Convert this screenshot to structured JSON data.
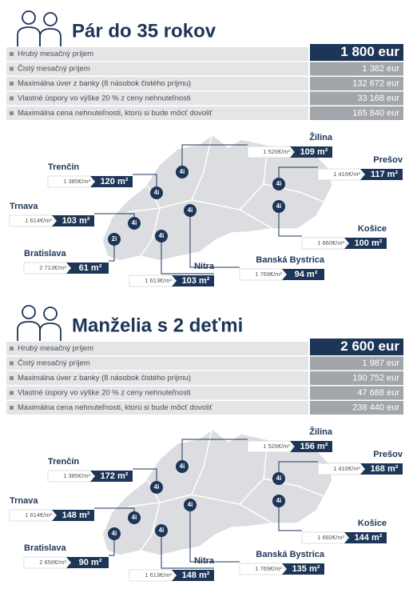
{
  "sections": [
    {
      "title": "Pár do 35 rokov",
      "table": {
        "rows": [
          {
            "label": "Hrubý mesačný príjem",
            "value": "1 800 eur"
          },
          {
            "label": "Čistý mesačný príjem",
            "value": "1 382 eur"
          },
          {
            "label": "Maximálna úver z banky (8 násobok čistého príjmu)",
            "value": "132 672 eur"
          },
          {
            "label": "Vlastné úspory vo výške 20 % z ceny nehnuteľnosti",
            "value": "33 168 eur"
          },
          {
            "label": "Maximálna cena nehnuteľnosti, ktorú si bude môcť dovoliť",
            "value": "165 840 eur"
          }
        ]
      },
      "map": {
        "cities": [
          {
            "name": "Žilina",
            "price": "1 526€/m²",
            "size": "109 m²",
            "marker": "4i"
          },
          {
            "name": "Trenčín",
            "price": "1 385€/m²",
            "size": "120 m²",
            "marker": "4i"
          },
          {
            "name": "Prešov",
            "price": "1 416€/m²",
            "size": "117 m²",
            "marker": "4i"
          },
          {
            "name": "Trnava",
            "price": "1 614€/m²",
            "size": "103 m²",
            "marker": "4i"
          },
          {
            "name": "Košice",
            "price": "1 660€/m²",
            "size": "100 m²",
            "marker": "4i"
          },
          {
            "name": "Bratislava",
            "price": "2 713€/m²",
            "size": "61 m²",
            "marker": "2i"
          },
          {
            "name": "Nitra",
            "price": "1 613€/m²",
            "size": "103 m²",
            "marker": "4i"
          },
          {
            "name": "Banská Bystrica",
            "price": "1 769€/m²",
            "size": "94 m²",
            "marker": "4i"
          }
        ]
      }
    },
    {
      "title": "Manželia s 2 deťmi",
      "table": {
        "rows": [
          {
            "label": "Hrubý mesačný príjem",
            "value": "2 600 eur"
          },
          {
            "label": "Čistý mesačný príjem",
            "value": "1 987 eur"
          },
          {
            "label": "Maximálna úver z banky (8 násobok čistého príjmu)",
            "value": "190 752 eur"
          },
          {
            "label": "Vlastné úspory vo výške 20 % z ceny nehnuteľnosti",
            "value": "47 688 eur"
          },
          {
            "label": "Maximálna cena nehnuteľnosti, ktorú si bude môcť dovoliť",
            "value": "238 440 eur"
          }
        ]
      },
      "map": {
        "cities": [
          {
            "name": "Žilina",
            "price": "1 526€/m²",
            "size": "156 m²",
            "marker": "4i"
          },
          {
            "name": "Trenčín",
            "price": "1 385€/m²",
            "size": "172 m²",
            "marker": "4i"
          },
          {
            "name": "Prešov",
            "price": "1 416€/m²",
            "size": "168 m²",
            "marker": "4i"
          },
          {
            "name": "Trnava",
            "price": "1 614€/m²",
            "size": "148 m²",
            "marker": "4i"
          },
          {
            "name": "Košice",
            "price": "1 660€/m²",
            "size": "144 m²",
            "marker": "4i"
          },
          {
            "name": "Bratislava",
            "price": "2 656€/m²",
            "size": "90 m²",
            "marker": "4i"
          },
          {
            "name": "Nitra",
            "price": "1 613€/m²",
            "size": "148 m²",
            "marker": "4i"
          },
          {
            "name": "Banská Bystrica",
            "price": "1 769€/m²",
            "size": "135 m²",
            "marker": "4i"
          }
        ]
      }
    }
  ]
}
